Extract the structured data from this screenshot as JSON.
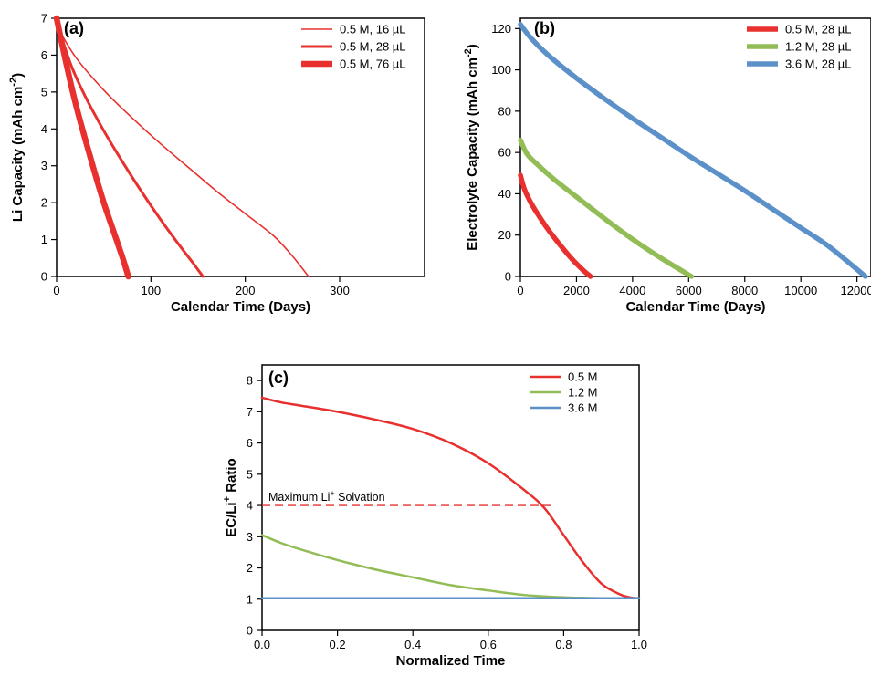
{
  "chart_data": [
    {
      "panel": "(a)",
      "type": "line",
      "xlabel": "Calendar Time (Days)",
      "ylabel_main": "Li Capacity (mAh cm",
      "ylabel_sup": "-2",
      "ylabel_close": ")",
      "xlim": [
        0,
        390
      ],
      "ylim": [
        0,
        7
      ],
      "xticks": [
        0,
        100,
        200,
        300
      ],
      "yticks": [
        0,
        1,
        2,
        3,
        4,
        5,
        6,
        7
      ],
      "legend_position": "top-right",
      "series": [
        {
          "name": "0.5 M, 16 µL",
          "color": "#e8302e",
          "width": 1.6,
          "x": [
            0,
            20,
            50,
            80,
            110,
            140,
            170,
            200,
            230,
            250,
            267
          ],
          "y": [
            6.8,
            5.95,
            5.05,
            4.3,
            3.6,
            2.95,
            2.3,
            1.7,
            1.1,
            0.55,
            0.0
          ]
        },
        {
          "name": "0.5 M, 28 µL",
          "color": "#e8302e",
          "width": 3,
          "x": [
            0,
            15,
            30,
            50,
            70,
            90,
            110,
            130,
            145,
            155
          ],
          "y": [
            6.9,
            5.75,
            4.9,
            3.95,
            3.1,
            2.3,
            1.55,
            0.85,
            0.35,
            0.0
          ]
        },
        {
          "name": "0.5 M, 76 µL",
          "color": "#e8302e",
          "width": 6.5,
          "x": [
            0,
            10,
            20,
            30,
            40,
            50,
            60,
            70,
            76
          ],
          "y": [
            7.0,
            5.8,
            4.7,
            3.75,
            2.85,
            2.0,
            1.25,
            0.5,
            0.0
          ]
        }
      ]
    },
    {
      "panel": "(b)",
      "type": "line",
      "xlabel": "Calendar Time (Days)",
      "ylabel_main": "Electrolyte Capacity (mAh cm",
      "ylabel_sup": "-2",
      "ylabel_close": ")",
      "xlim": [
        0,
        12500
      ],
      "ylim": [
        0,
        125
      ],
      "xticks": [
        0,
        2000,
        4000,
        6000,
        8000,
        10000,
        12000
      ],
      "yticks": [
        0,
        20,
        40,
        60,
        80,
        100,
        120
      ],
      "legend_position": "top-right",
      "series": [
        {
          "name": "0.5 M, 28 µL",
          "color": "#e8302e",
          "width": 5.5,
          "x": [
            0,
            150,
            400,
            700,
            1000,
            1400,
            1800,
            2200,
            2500
          ],
          "y": [
            49,
            42,
            35,
            28.5,
            22.5,
            15.5,
            9,
            3.5,
            0
          ]
        },
        {
          "name": "1.2 M, 28 µL",
          "color": "#92bc55",
          "width": 5.5,
          "x": [
            0,
            250,
            700,
            1200,
            2000,
            3000,
            4000,
            5000,
            6100
          ],
          "y": [
            66,
            59,
            53,
            47,
            38.5,
            28,
            18,
            9,
            0
          ]
        },
        {
          "name": "3.6 M, 28 µL",
          "color": "#5b91c8",
          "width": 5.5,
          "x": [
            0,
            400,
            1000,
            2000,
            3000,
            4000,
            5000,
            6000,
            7000,
            8000,
            9000,
            10000,
            11000,
            12300
          ],
          "y": [
            122,
            115,
            107,
            96,
            86,
            76.5,
            67.5,
            58.5,
            50,
            41.5,
            32.5,
            23.5,
            14.5,
            0
          ]
        }
      ]
    },
    {
      "panel": "(c)",
      "type": "line",
      "xlabel": "Normalized Time",
      "ylabel_main": "EC/Li",
      "ylabel_sup": "+",
      "ylabel_close": " Ratio",
      "xlim": [
        0,
        1.0
      ],
      "ylim": [
        0,
        8.5
      ],
      "xticks": [
        0.0,
        0.2,
        0.4,
        0.6,
        0.8,
        1.0
      ],
      "yticks": [
        0,
        1,
        2,
        3,
        4,
        5,
        6,
        7,
        8
      ],
      "legend_position": "top-right",
      "annotation": {
        "text_main": "Maximum Li",
        "text_sup": "+",
        "text_rest": " Solvation",
        "y": 4.0,
        "x_end": 0.77
      },
      "series": [
        {
          "name": "0.5 M",
          "color": "#e8302e",
          "width": 2.5,
          "x": [
            0,
            0.05,
            0.1,
            0.2,
            0.3,
            0.4,
            0.5,
            0.6,
            0.7,
            0.75,
            0.8,
            0.85,
            0.9,
            0.95,
            0.98,
            1.0
          ],
          "y": [
            7.45,
            7.3,
            7.2,
            7.0,
            6.75,
            6.45,
            6.0,
            5.35,
            4.45,
            3.9,
            3.05,
            2.2,
            1.5,
            1.15,
            1.05,
            1.03
          ]
        },
        {
          "name": "1.2 M",
          "color": "#92bc55",
          "width": 2.5,
          "x": [
            0,
            0.05,
            0.1,
            0.2,
            0.3,
            0.4,
            0.5,
            0.6,
            0.7,
            0.8,
            0.9,
            1.0
          ],
          "y": [
            3.05,
            2.8,
            2.6,
            2.25,
            1.95,
            1.7,
            1.45,
            1.28,
            1.13,
            1.06,
            1.03,
            1.03
          ]
        },
        {
          "name": "3.6 M",
          "color": "#5b91c8",
          "width": 2.5,
          "x": [
            0,
            1.0
          ],
          "y": [
            1.03,
            1.03
          ]
        }
      ]
    }
  ]
}
